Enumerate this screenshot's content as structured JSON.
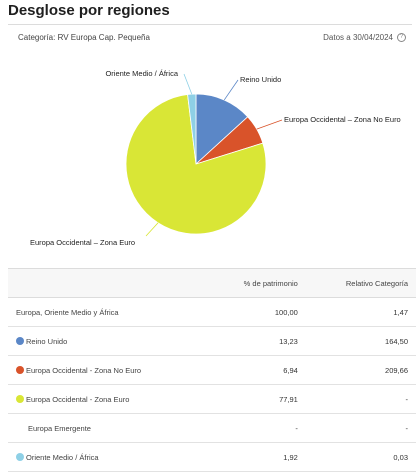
{
  "title": "Desglose por regiones",
  "category": "Categoría: RV Europa Cap. Pequeña",
  "date": "Datos a 30/04/2024",
  "table": {
    "headers": [
      "",
      "% de patrimonio",
      "Relativo Categoría"
    ],
    "rows": [
      {
        "name": "Europa, Oriente Medio y África",
        "patrimonio": "100,00",
        "relativo": "1,47"
      },
      {
        "name": "Reino Unido",
        "patrimonio": "13,23",
        "relativo": "164,50",
        "color": "#5b87c7"
      },
      {
        "name": "Europa Occidental - Zona No Euro",
        "patrimonio": "6,94",
        "relativo": "209,66",
        "color": "#d9532a"
      },
      {
        "name": "Europa Occidental - Zona Euro",
        "patrimonio": "77,91",
        "relativo": "-",
        "color": "#d9e636"
      },
      {
        "name": "Europa Emergente",
        "patrimonio": "-",
        "relativo": "-"
      },
      {
        "name": "Oriente Medio / África",
        "patrimonio": "1,92",
        "relativo": "0,03",
        "color": "#8ed0e6"
      }
    ]
  },
  "chart_data": {
    "type": "pie",
    "slices": [
      {
        "label": "Reino Unido",
        "value": 13.23,
        "color": "#5b87c7"
      },
      {
        "label": "Europa Occidental – Zona No Euro",
        "value": 6.94,
        "color": "#d9532a"
      },
      {
        "label": "Europa Occidental – Zona Euro",
        "value": 77.91,
        "color": "#d9e636"
      },
      {
        "label": "Oriente Medio / África",
        "value": 1.92,
        "color": "#8ed0e6"
      }
    ]
  }
}
